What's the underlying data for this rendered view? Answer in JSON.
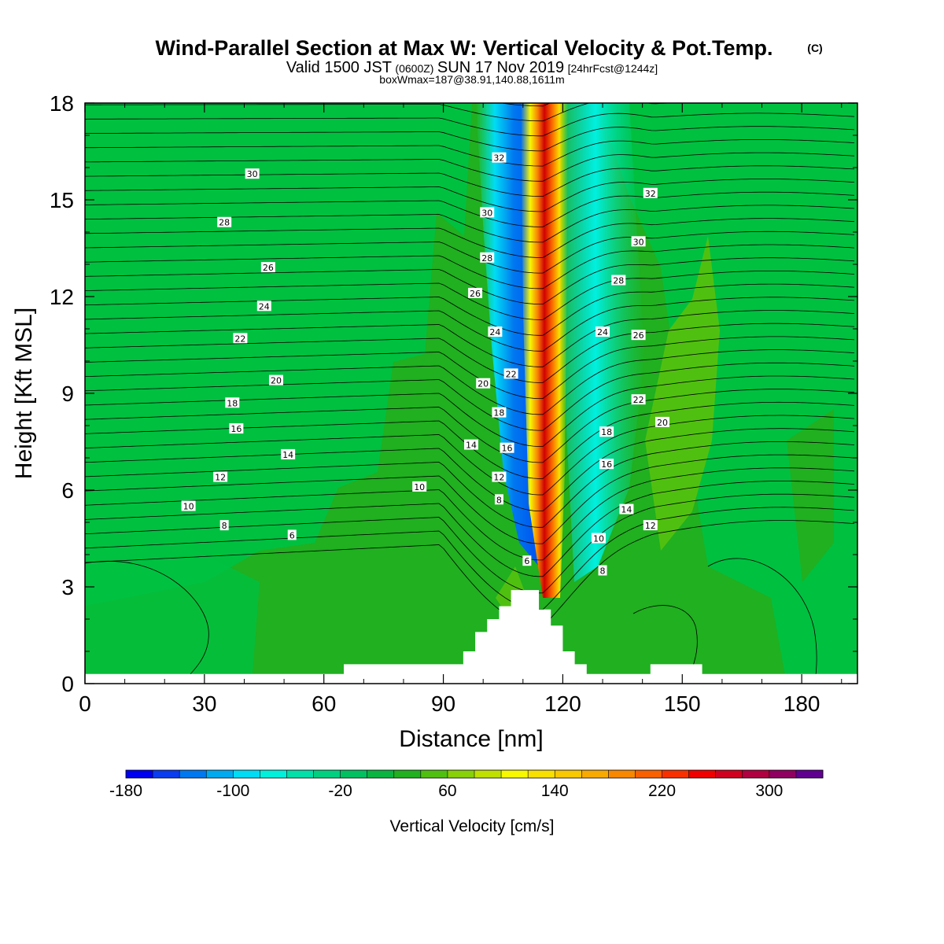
{
  "title": {
    "main": "Wind-Parallel Section at Max W: Vertical Velocity & Pot.Temp.",
    "mark": "(C)",
    "valid_prefix": "Valid 1500 JST",
    "valid_z": "(0600Z)",
    "valid_date": "SUN 17 Nov 2019",
    "forecast": "[24hrFcst@1244z]",
    "box": "boxWmax=187@38.91,140.88,1611m"
  },
  "chart_data": {
    "type": "heatmap",
    "xlabel": "Distance [nm]",
    "ylabel": "Height [Kft MSL]",
    "xlim": [
      0,
      194
    ],
    "ylim": [
      0,
      18
    ],
    "xticks": [
      0,
      30,
      60,
      90,
      120,
      150,
      180
    ],
    "yticks": [
      0,
      3,
      6,
      9,
      12,
      15,
      18
    ],
    "grid": false,
    "background_field": "green (approx -20 to 20 cm/s)",
    "updraft_core_x_nm": 118,
    "downdraft_core_x_nm": 108,
    "terrain": [
      {
        "x0": 0,
        "x1": 65,
        "top": 0.3
      },
      {
        "x0": 65,
        "x1": 95,
        "top": 0.6
      },
      {
        "x0": 95,
        "x1": 98,
        "top": 1.0
      },
      {
        "x0": 98,
        "x1": 101,
        "top": 1.6
      },
      {
        "x0": 101,
        "x1": 104,
        "top": 2.0
      },
      {
        "x0": 104,
        "x1": 107,
        "top": 2.4
      },
      {
        "x0": 107,
        "x1": 114,
        "top": 2.9
      },
      {
        "x0": 114,
        "x1": 117,
        "top": 2.3
      },
      {
        "x0": 117,
        "x1": 120,
        "top": 1.8
      },
      {
        "x0": 120,
        "x1": 123,
        "top": 1.0
      },
      {
        "x0": 123,
        "x1": 126,
        "top": 0.6
      },
      {
        "x0": 126,
        "x1": 142,
        "top": 0.3
      },
      {
        "x0": 142,
        "x1": 155,
        "top": 0.6
      },
      {
        "x0": 155,
        "x1": 194,
        "top": 0.3
      }
    ],
    "contour_labels": [
      {
        "text": "30",
        "x": 42,
        "y": 15.8
      },
      {
        "text": "28",
        "x": 35,
        "y": 14.3
      },
      {
        "text": "26",
        "x": 46,
        "y": 12.9
      },
      {
        "text": "24",
        "x": 45,
        "y": 11.7
      },
      {
        "text": "22",
        "x": 39,
        "y": 10.7
      },
      {
        "text": "20",
        "x": 48,
        "y": 9.4
      },
      {
        "text": "18",
        "x": 37,
        "y": 8.7
      },
      {
        "text": "16",
        "x": 38,
        "y": 7.9
      },
      {
        "text": "14",
        "x": 51,
        "y": 7.1
      },
      {
        "text": "12",
        "x": 34,
        "y": 6.4
      },
      {
        "text": "10",
        "x": 26,
        "y": 5.5
      },
      {
        "text": "8",
        "x": 35,
        "y": 4.9
      },
      {
        "text": "6",
        "x": 52,
        "y": 4.6
      },
      {
        "text": "10",
        "x": 84,
        "y": 6.1
      },
      {
        "text": "32",
        "x": 104,
        "y": 16.3
      },
      {
        "text": "30",
        "x": 101,
        "y": 14.6
      },
      {
        "text": "28",
        "x": 101,
        "y": 13.2
      },
      {
        "text": "26",
        "x": 98,
        "y": 12.1
      },
      {
        "text": "24",
        "x": 103,
        "y": 10.9
      },
      {
        "text": "22",
        "x": 107,
        "y": 9.6
      },
      {
        "text": "20",
        "x": 100,
        "y": 9.3
      },
      {
        "text": "18",
        "x": 104,
        "y": 8.4
      },
      {
        "text": "16",
        "x": 106,
        "y": 7.3
      },
      {
        "text": "14",
        "x": 97,
        "y": 7.4
      },
      {
        "text": "12",
        "x": 104,
        "y": 6.4
      },
      {
        "text": "8",
        "x": 104,
        "y": 5.7
      },
      {
        "text": "6",
        "x": 111,
        "y": 3.8
      },
      {
        "text": "32",
        "x": 142,
        "y": 15.2
      },
      {
        "text": "30",
        "x": 139,
        "y": 13.7
      },
      {
        "text": "28",
        "x": 134,
        "y": 12.5
      },
      {
        "text": "26",
        "x": 139,
        "y": 10.8
      },
      {
        "text": "24",
        "x": 130,
        "y": 10.9
      },
      {
        "text": "22",
        "x": 139,
        "y": 8.8
      },
      {
        "text": "20",
        "x": 145,
        "y": 8.1
      },
      {
        "text": "18",
        "x": 131,
        "y": 7.8
      },
      {
        "text": "16",
        "x": 131,
        "y": 6.8
      },
      {
        "text": "14",
        "x": 136,
        "y": 5.4
      },
      {
        "text": "12",
        "x": 142,
        "y": 4.9
      },
      {
        "text": "10",
        "x": 129,
        "y": 4.5
      },
      {
        "text": "8",
        "x": 130,
        "y": 3.5
      }
    ]
  },
  "colorbar": {
    "label": "Vertical Velocity [cm/s]",
    "tick_labels": [
      "-180",
      "-100",
      "-20",
      "60",
      "140",
      "220",
      "300"
    ],
    "colors": [
      "#0000f0",
      "#0a3cf0",
      "#0078f0",
      "#00aaf0",
      "#00dcf5",
      "#00f0dc",
      "#00e0a8",
      "#00d080",
      "#00c060",
      "#0ab440",
      "#20b020",
      "#50c010",
      "#88d008",
      "#c0e000",
      "#f8f800",
      "#f8e000",
      "#f8c800",
      "#f8aa00",
      "#f88800",
      "#f86000",
      "#f83000",
      "#f00000",
      "#d00020",
      "#b00040",
      "#900060",
      "#600090"
    ]
  }
}
